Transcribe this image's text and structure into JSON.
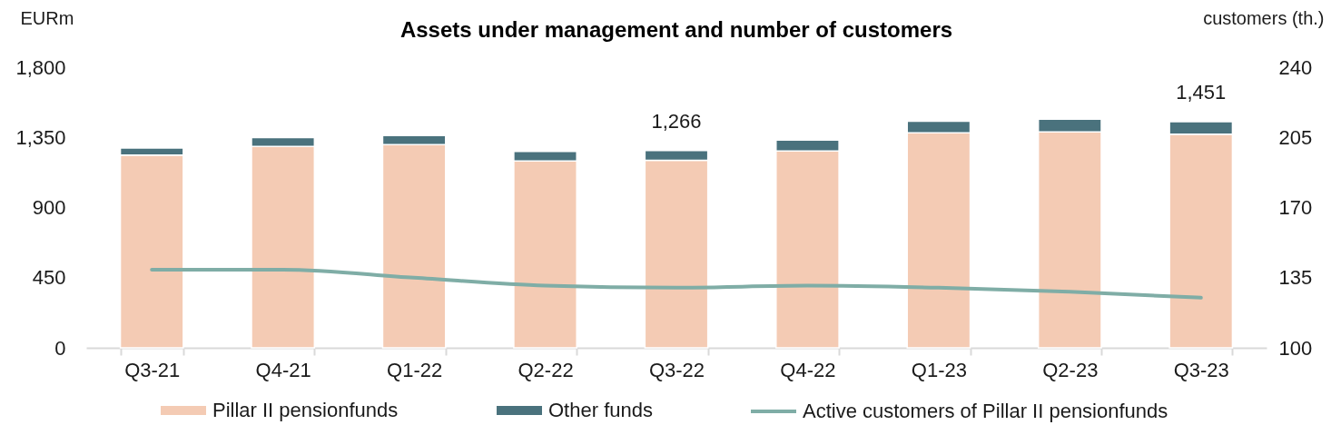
{
  "chart_data": {
    "type": "bar",
    "title": "Assets under management and number of customers",
    "ylabel": "EURm",
    "y2label": "customers (th.)",
    "categories": [
      "Q3-21",
      "Q4-21",
      "Q1-22",
      "Q2-22",
      "Q3-22",
      "Q4-22",
      "Q1-23",
      "Q2-23",
      "Q3-23"
    ],
    "stacked": true,
    "series": [
      {
        "name": "Pillar II pensionfunds",
        "color": "#f4cbb4",
        "values": [
          1237,
          1292,
          1304,
          1199,
          1203,
          1263,
          1379,
          1385,
          1371
        ]
      },
      {
        "name": "Other funds",
        "color": "#4a727d",
        "values": [
          45,
          56,
          58,
          60,
          63,
          70,
          74,
          82,
          80
        ]
      },
      {
        "name": "Active customers of Pillar II pensionfunds",
        "type": "line",
        "axis": "y2",
        "color": "#7fada6",
        "values": [
          139,
          139,
          135,
          131,
          130,
          131,
          130,
          128,
          125
        ]
      }
    ],
    "totals": [
      null,
      null,
      null,
      null,
      "1,266",
      null,
      null,
      null,
      "1,451"
    ],
    "ylim": [
      0,
      1800
    ],
    "yticks": [
      0,
      450,
      900,
      {
        "value": 1350,
        "label": "1,350"
      },
      {
        "value": 1800,
        "label": "1,800"
      }
    ],
    "y2lim": [
      100,
      240
    ],
    "y2ticks": [
      100,
      135,
      170,
      205,
      240
    ],
    "grid": false,
    "legend": "bottom"
  }
}
